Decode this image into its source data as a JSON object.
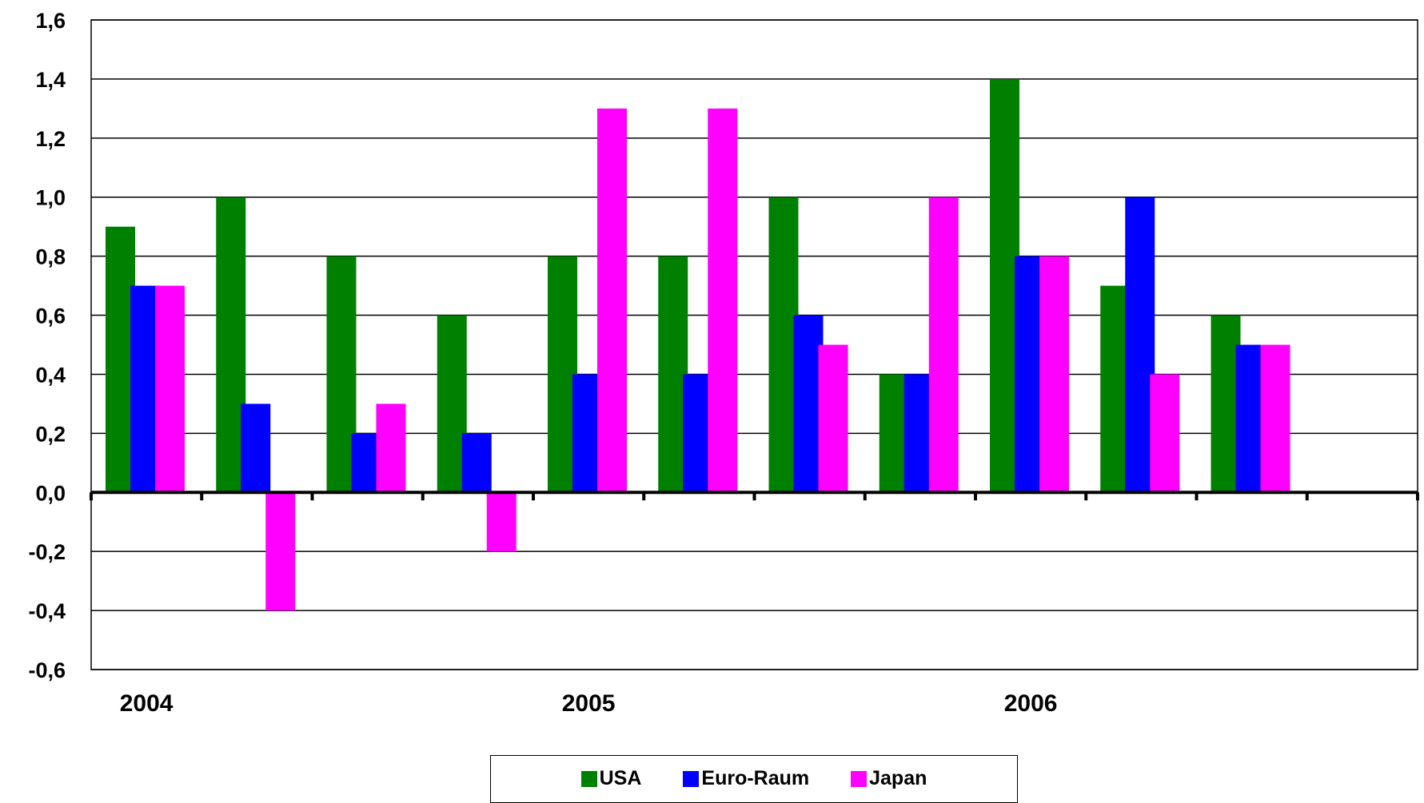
{
  "chart_data": {
    "type": "bar",
    "title": "",
    "xlabel": "",
    "ylabel": "",
    "ylim": [
      -0.6,
      1.6
    ],
    "yticks": [
      1.6,
      1.4,
      1.2,
      1.0,
      0.8,
      0.6,
      0.4,
      0.2,
      0.0,
      -0.2,
      -0.4,
      -0.6
    ],
    "ytick_labels": [
      "1,6",
      "1,4",
      "1,2",
      "1,0",
      "0,8",
      "0,6",
      "0,4",
      "0,2",
      "0,0",
      "-0,2",
      "-0,4",
      "-0,6"
    ],
    "x_group_labels": [
      {
        "label": "2004",
        "at_category": 0.5
      },
      {
        "label": "2005",
        "at_category": 4.5
      },
      {
        "label": "2006",
        "at_category": 8.5
      }
    ],
    "category_count": 12,
    "grid": true,
    "legend_position": "bottom",
    "series": [
      {
        "name": "USA",
        "color": "#008000",
        "values": [
          0.9,
          1.0,
          0.8,
          0.6,
          0.8,
          0.8,
          1.0,
          0.4,
          1.4,
          0.7,
          0.6,
          null
        ]
      },
      {
        "name": "Euro-Raum",
        "color": "#0000FF",
        "values": [
          0.7,
          0.3,
          0.2,
          0.2,
          0.4,
          0.4,
          0.6,
          0.4,
          0.8,
          1.0,
          0.5,
          null
        ]
      },
      {
        "name": "Japan",
        "color": "#FF00FF",
        "values": [
          0.7,
          -0.4,
          0.3,
          -0.2,
          1.3,
          1.3,
          0.5,
          1.0,
          0.8,
          0.4,
          0.5,
          null
        ]
      }
    ]
  }
}
